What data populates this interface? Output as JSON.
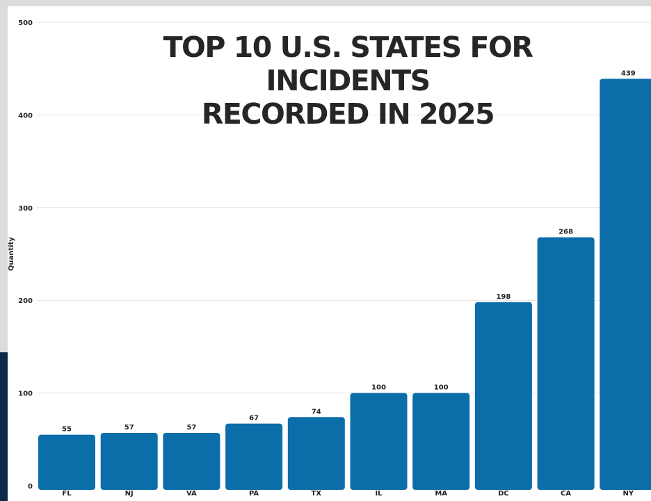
{
  "chart_data": {
    "type": "bar",
    "title_lines": [
      "TOP 10 U.S. STATES FOR INCIDENTS",
      "RECORDED IN 2025"
    ],
    "xlabel": "",
    "ylabel": "Quantity",
    "categories": [
      "FL",
      "NJ",
      "VA",
      "PA",
      "TX",
      "IL",
      "MA",
      "DC",
      "CA",
      "NY"
    ],
    "values": [
      55,
      57,
      57,
      67,
      74,
      100,
      100,
      198,
      268,
      439
    ],
    "ylim": [
      0,
      500
    ],
    "yticks": [
      0,
      100,
      200,
      300,
      400,
      500
    ],
    "grid": true,
    "bar_color": "#0b6ea9",
    "legend": "none"
  }
}
